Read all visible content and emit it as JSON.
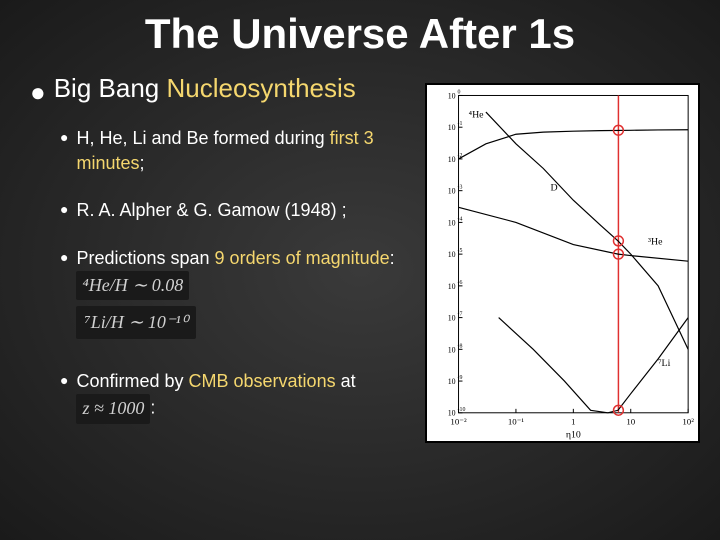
{
  "title": {
    "text": "The Universe After 1s",
    "fontsize": 42,
    "color": "#ffffff"
  },
  "main_bullet": {
    "prefix": "Big Bang ",
    "highlight": "Nucleosynthesis",
    "highlight_color": "#f5d76e",
    "fontsize": 26
  },
  "sub_bullets": {
    "fontsize": 18,
    "items": [
      {
        "pre": "H, He, Li and Be formed during ",
        "hl": "first 3 minutes",
        "post": ";"
      },
      {
        "pre": "R. A. Alpher & G. Gamow (1948) ;",
        "hl": "",
        "post": ""
      },
      {
        "pre": "Predictions span ",
        "hl": "9 orders of magnitude",
        "post": ":"
      },
      {
        "pre": "Confirmed by ",
        "hl": "CMB observations",
        "post": " at "
      }
    ]
  },
  "formulas": {
    "he": "⁴He/H ∼ 0.08",
    "li": "⁷Li/H ∼ 10⁻¹⁰",
    "z": "z ≈ 1000"
  },
  "colors": {
    "background": "#2a2a2a",
    "text": "#ffffff",
    "highlight": "#f5d76e",
    "formula_bg": "#1a1a1a",
    "formula_text": "#d0d0d0"
  },
  "chart": {
    "type": "log-log-line",
    "background_color": "#ffffff",
    "border_color": "#000000",
    "axis_color": "#000000",
    "grid": false,
    "x": {
      "lim": [
        0.01,
        100.0
      ],
      "ticks": [
        0.01,
        0.1,
        1,
        10,
        100
      ],
      "tick_labels": [
        "10⁻²",
        "10⁻¹",
        "1",
        "10",
        "10²"
      ],
      "label": "η10",
      "fontsize": 9
    },
    "y": {
      "lim": [
        1e-10,
        1
      ],
      "ticks_pow": [
        -10,
        -9,
        -8,
        -7,
        -6,
        -5,
        -4,
        -3,
        -2,
        -1,
        0
      ],
      "label": "",
      "fontsize": 8
    },
    "vline": {
      "x": 6.1,
      "color": "#e03030",
      "width": 1.5
    },
    "data_points": {
      "color": "#e03030",
      "marker": "circle",
      "size": 5,
      "points": [
        {
          "x": 6.1,
          "y": 0.08
        },
        {
          "x": 6.1,
          "y": 2.6e-05
        },
        {
          "x": 6.1,
          "y": 1e-05
        },
        {
          "x": 6.1,
          "y": 1.2e-10
        }
      ]
    },
    "series": [
      {
        "name": "He4",
        "label": "⁴He",
        "label_xy": [
          0.015,
          0.2
        ],
        "color": "#000",
        "width": 1.2,
        "pts": [
          {
            "x": 0.01,
            "y": 0.01
          },
          {
            "x": 0.03,
            "y": 0.03
          },
          {
            "x": 0.1,
            "y": 0.06
          },
          {
            "x": 0.3,
            "y": 0.07
          },
          {
            "x": 1,
            "y": 0.075
          },
          {
            "x": 3,
            "y": 0.078
          },
          {
            "x": 10,
            "y": 0.08
          },
          {
            "x": 30,
            "y": 0.082
          },
          {
            "x": 100,
            "y": 0.083
          }
        ]
      },
      {
        "name": "D",
        "label": "D",
        "label_xy": [
          0.4,
          0.001
        ],
        "color": "#000",
        "width": 1.2,
        "pts": [
          {
            "x": 0.03,
            "y": 0.3
          },
          {
            "x": 0.1,
            "y": 0.03
          },
          {
            "x": 0.3,
            "y": 0.005
          },
          {
            "x": 1,
            "y": 0.0005
          },
          {
            "x": 3,
            "y": 8e-05
          },
          {
            "x": 6,
            "y": 2.6e-05
          },
          {
            "x": 10,
            "y": 1e-05
          },
          {
            "x": 30,
            "y": 1e-06
          },
          {
            "x": 100,
            "y": 1e-08
          }
        ]
      },
      {
        "name": "He3",
        "label": "³He",
        "label_xy": [
          20,
          2e-05
        ],
        "color": "#000",
        "width": 1.2,
        "pts": [
          {
            "x": 0.01,
            "y": 0.0003
          },
          {
            "x": 0.1,
            "y": 0.0001
          },
          {
            "x": 1,
            "y": 2e-05
          },
          {
            "x": 6,
            "y": 1e-05
          },
          {
            "x": 10,
            "y": 9e-06
          },
          {
            "x": 100,
            "y": 6e-06
          }
        ]
      },
      {
        "name": "Li7",
        "label": "⁷Li",
        "label_xy": [
          30,
          3e-09
        ],
        "color": "#000",
        "width": 1.2,
        "pts": [
          {
            "x": 0.05,
            "y": 1e-07
          },
          {
            "x": 0.2,
            "y": 1e-08
          },
          {
            "x": 0.7,
            "y": 1e-09
          },
          {
            "x": 2,
            "y": 1.2e-10
          },
          {
            "x": 4,
            "y": 8e-11
          },
          {
            "x": 6,
            "y": 1.2e-10
          },
          {
            "x": 10,
            "y": 4e-10
          },
          {
            "x": 30,
            "y": 5e-09
          },
          {
            "x": 100,
            "y": 1e-07
          }
        ]
      }
    ]
  }
}
